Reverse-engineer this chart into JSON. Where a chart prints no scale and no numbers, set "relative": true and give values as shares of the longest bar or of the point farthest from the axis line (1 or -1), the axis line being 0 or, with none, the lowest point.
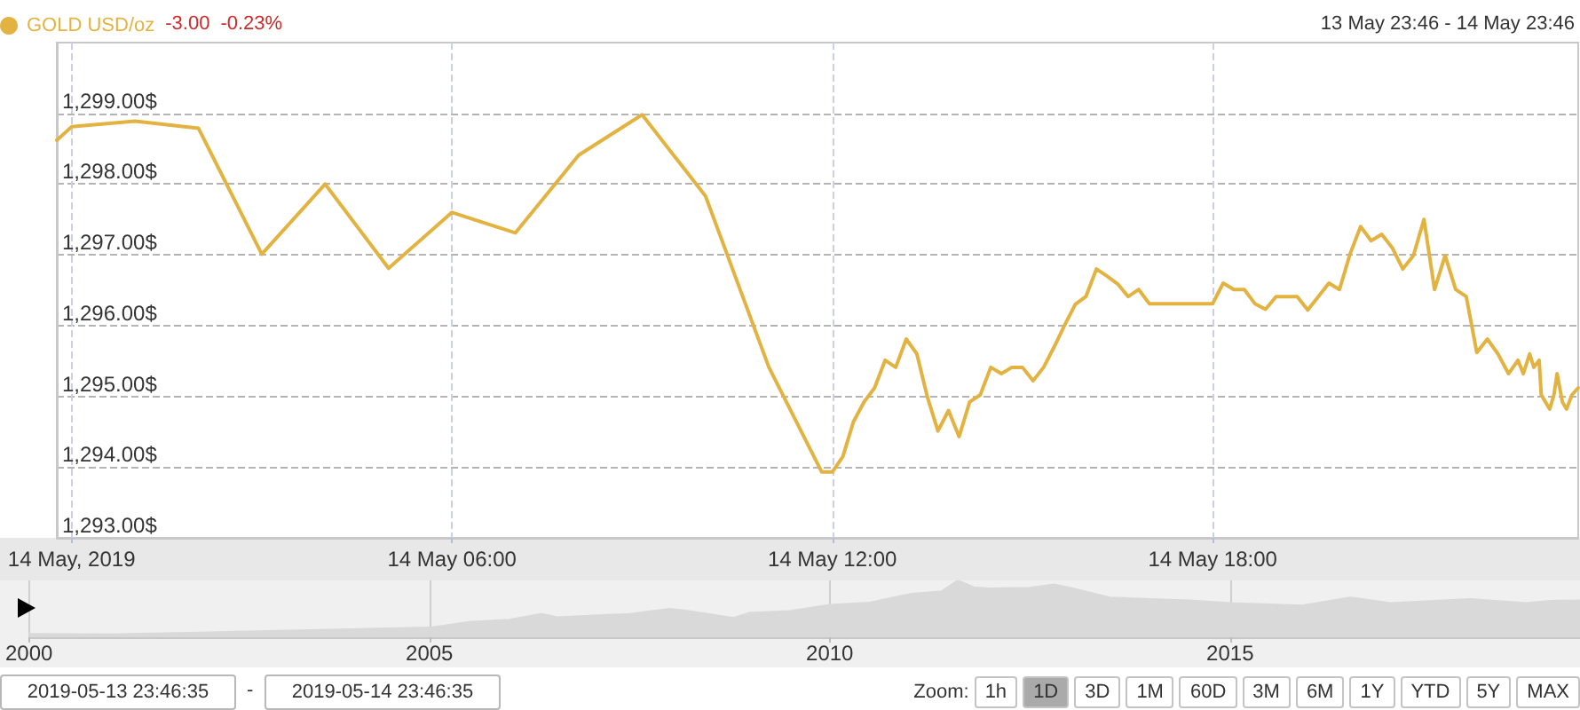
{
  "chart_data": [
    {
      "type": "line",
      "annotations": [
        "-3.00",
        "-0.23%",
        "13 May 23:46 - 14 May 23:46"
      ],
      "x": [
        "2019-05-13T23:46",
        "2019-05-14T00:00",
        "2019-05-14T01:00",
        "2019-05-14T02:00",
        "2019-05-14T03:00",
        "2019-05-14T04:00",
        "2019-05-14T05:00",
        "2019-05-14T06:00",
        "2019-05-14T07:00",
        "2019-05-14T08:00",
        "2019-05-14T09:00",
        "2019-05-14T10:00",
        "2019-05-14T11:00",
        "2019-05-14T11:50",
        "2019-05-14T12:00",
        "2019-05-14T12:10",
        "2019-05-14T12:20",
        "2019-05-14T12:30",
        "2019-05-14T12:40",
        "2019-05-14T12:50",
        "2019-05-14T13:00",
        "2019-05-14T13:10",
        "2019-05-14T13:20",
        "2019-05-14T13:30",
        "2019-05-14T13:40",
        "2019-05-14T13:50",
        "2019-05-14T14:00",
        "2019-05-14T14:10",
        "2019-05-14T14:20",
        "2019-05-14T14:30",
        "2019-05-14T14:40",
        "2019-05-14T14:50",
        "2019-05-14T15:00",
        "2019-05-14T15:10",
        "2019-05-14T15:20",
        "2019-05-14T15:30",
        "2019-05-14T15:40",
        "2019-05-14T15:50",
        "2019-05-14T16:00",
        "2019-05-14T16:10",
        "2019-05-14T16:20",
        "2019-05-14T16:30",
        "2019-05-14T16:40",
        "2019-05-14T16:50",
        "2019-05-14T17:00",
        "2019-05-14T18:00",
        "2019-05-14T18:10",
        "2019-05-14T18:20",
        "2019-05-14T18:30",
        "2019-05-14T18:40",
        "2019-05-14T18:50",
        "2019-05-14T19:00",
        "2019-05-14T19:20",
        "2019-05-14T19:30",
        "2019-05-14T19:40",
        "2019-05-14T19:50",
        "2019-05-14T20:00",
        "2019-05-14T20:10",
        "2019-05-14T20:20",
        "2019-05-14T20:30",
        "2019-05-14T20:40",
        "2019-05-14T20:50",
        "2019-05-14T21:00",
        "2019-05-14T21:10",
        "2019-05-14T21:20",
        "2019-05-14T21:30",
        "2019-05-14T21:40",
        "2019-05-14T21:50",
        "2019-05-14T22:00",
        "2019-05-14T22:10",
        "2019-05-14T22:20",
        "2019-05-14T22:30",
        "2019-05-14T22:40",
        "2019-05-14T22:49",
        "2019-05-14T22:54",
        "2019-05-14T23:00",
        "2019-05-14T23:04",
        "2019-05-14T23:09",
        "2019-05-14T23:11",
        "2019-05-14T23:19",
        "2019-05-14T23:23",
        "2019-05-14T23:26",
        "2019-05-14T23:31",
        "2019-05-14T23:35",
        "2019-05-14T23:40",
        "2019-05-14T23:46"
      ],
      "series": [
        {
          "name": "GOLD USD/oz",
          "color": "#e3b341",
          "values": [
            1298.62,
            1298.81,
            1298.89,
            1298.79,
            1297.01,
            1298.0,
            1296.81,
            1297.6,
            1297.31,
            1298.41,
            1298.98,
            1297.83,
            1295.41,
            1293.93,
            1293.93,
            1294.15,
            1294.64,
            1294.92,
            1295.12,
            1295.51,
            1295.41,
            1295.81,
            1295.6,
            1294.99,
            1294.51,
            1294.8,
            1294.43,
            1294.92,
            1295.02,
            1295.41,
            1295.32,
            1295.41,
            1295.41,
            1295.22,
            1295.41,
            1295.7,
            1296.01,
            1296.3,
            1296.41,
            1296.8,
            1296.7,
            1296.59,
            1296.41,
            1296.51,
            1296.31,
            1296.31,
            1296.6,
            1296.51,
            1296.51,
            1296.31,
            1296.23,
            1296.41,
            1296.41,
            1296.22,
            1296.41,
            1296.6,
            1296.51,
            1297.01,
            1297.4,
            1297.2,
            1297.29,
            1297.1,
            1296.8,
            1296.99,
            1297.5,
            1296.51,
            1296.99,
            1296.51,
            1296.41,
            1295.62,
            1295.81,
            1295.6,
            1295.32,
            1295.51,
            1295.32,
            1295.6,
            1295.41,
            1295.51,
            1295.02,
            1294.82,
            1295.02,
            1295.32,
            1294.92,
            1294.82,
            1295.02,
            1295.12
          ]
        }
      ],
      "xlim": [
        "2019-05-13T23:46",
        "2019-05-14T23:46"
      ],
      "xticks": [
        {
          "value": "2019-05-14T00:00",
          "label": "14 May, 2019"
        },
        {
          "value": "2019-05-14T06:00",
          "label": "14 May 06:00"
        },
        {
          "value": "2019-05-14T12:00",
          "label": "14 May 12:00"
        },
        {
          "value": "2019-05-14T18:00",
          "label": "14 May 18:00"
        }
      ],
      "ylim": [
        1293,
        1300
      ],
      "yticks": [
        {
          "value": 1293,
          "label": "1,293.00$"
        },
        {
          "value": 1294,
          "label": "1,294.00$"
        },
        {
          "value": 1295,
          "label": "1,295.00$"
        },
        {
          "value": 1296,
          "label": "1,296.00$"
        },
        {
          "value": 1297,
          "label": "1,297.00$"
        },
        {
          "value": 1298,
          "label": "1,298.00$"
        },
        {
          "value": 1299,
          "label": "1,299.00$"
        }
      ],
      "grid": true,
      "legend": "top left",
      "marker": "none"
    },
    {
      "type": "area",
      "relative": true,
      "color": "#d9d9d9",
      "marker": "none",
      "x": [
        2000,
        2001,
        2002,
        2003,
        2004,
        2005,
        2005.5,
        2006,
        2006.4,
        2006.6,
        2007,
        2007.5,
        2008,
        2008.2,
        2008.8,
        2009,
        2009.5,
        2010,
        2010.5,
        2011,
        2011.4,
        2011.6,
        2011.8,
        2012,
        2012.5,
        2012.8,
        2013,
        2013.5,
        2014,
        2014.5,
        2015,
        2015.9,
        2016.5,
        2017,
        2018,
        2018.7,
        2019,
        2019.37
      ],
      "values": [
        0.06,
        0.05,
        0.08,
        0.11,
        0.14,
        0.17,
        0.27,
        0.31,
        0.41,
        0.35,
        0.38,
        0.41,
        0.5,
        0.47,
        0.34,
        0.43,
        0.46,
        0.57,
        0.61,
        0.76,
        0.81,
        1,
        0.88,
        0.86,
        0.87,
        0.93,
        0.87,
        0.7,
        0.67,
        0.65,
        0.6,
        0.56,
        0.7,
        0.6,
        0.67,
        0.6,
        0.64,
        0.65
      ],
      "xlim": [
        2000,
        2019.37
      ],
      "xticks": [
        2000,
        2005,
        2010,
        2015
      ],
      "grid": "x"
    },
    {
      "type": "other",
      "annotations": [
        "2019-05-13 23:46:35",
        "-",
        "2019-05-14 23:46:35",
        "Zoom:",
        "1h",
        "1D",
        "3D",
        "1M",
        "60D",
        "3M",
        "6M",
        "1Y",
        "YTD",
        "5Y",
        "MAX"
      ]
    }
  ]
}
